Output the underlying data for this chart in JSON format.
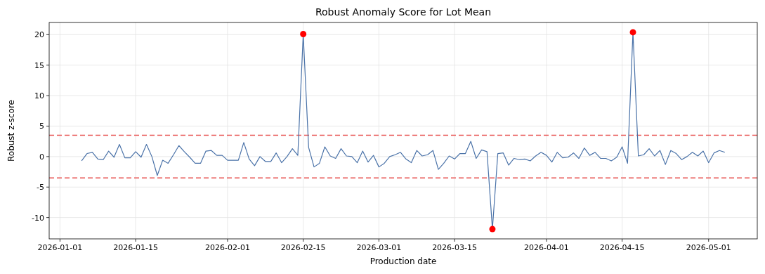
{
  "chart_data": {
    "type": "line",
    "title": "Robust Anomaly Score for Lot Mean",
    "xlabel": "Production date",
    "ylabel": "Robust z-score",
    "x": [
      "2026-01-05",
      "2026-01-06",
      "2026-01-07",
      "2026-01-08",
      "2026-01-09",
      "2026-01-10",
      "2026-01-11",
      "2026-01-12",
      "2026-01-13",
      "2026-01-14",
      "2026-01-15",
      "2026-01-16",
      "2026-01-17",
      "2026-01-18",
      "2026-01-19",
      "2026-01-20",
      "2026-01-21",
      "2026-01-22",
      "2026-01-23",
      "2026-01-24",
      "2026-01-25",
      "2026-01-26",
      "2026-01-27",
      "2026-01-28",
      "2026-01-29",
      "2026-01-30",
      "2026-01-31",
      "2026-02-01",
      "2026-02-02",
      "2026-02-03",
      "2026-02-04",
      "2026-02-05",
      "2026-02-06",
      "2026-02-07",
      "2026-02-08",
      "2026-02-09",
      "2026-02-10",
      "2026-02-11",
      "2026-02-12",
      "2026-02-13",
      "2026-02-14",
      "2026-02-15",
      "2026-02-16",
      "2026-02-17",
      "2026-02-18",
      "2026-02-19",
      "2026-02-20",
      "2026-02-21",
      "2026-02-22",
      "2026-02-23",
      "2026-02-24",
      "2026-02-25",
      "2026-02-26",
      "2026-02-27",
      "2026-02-28",
      "2026-03-01",
      "2026-03-02",
      "2026-03-03",
      "2026-03-04",
      "2026-03-05",
      "2026-03-06",
      "2026-03-07",
      "2026-03-08",
      "2026-03-09",
      "2026-03-10",
      "2026-03-11",
      "2026-03-12",
      "2026-03-13",
      "2026-03-14",
      "2026-03-15",
      "2026-03-16",
      "2026-03-17",
      "2026-03-18",
      "2026-03-19",
      "2026-03-20",
      "2026-03-21",
      "2026-03-22",
      "2026-03-23",
      "2026-03-24",
      "2026-03-25",
      "2026-03-26",
      "2026-03-27",
      "2026-03-28",
      "2026-03-29",
      "2026-03-30",
      "2026-03-31",
      "2026-04-01",
      "2026-04-02",
      "2026-04-03",
      "2026-04-04",
      "2026-04-05",
      "2026-04-06",
      "2026-04-07",
      "2026-04-08",
      "2026-04-09",
      "2026-04-10",
      "2026-04-11",
      "2026-04-12",
      "2026-04-13",
      "2026-04-14",
      "2026-04-15",
      "2026-04-16",
      "2026-04-17",
      "2026-04-18",
      "2026-04-19",
      "2026-04-20",
      "2026-04-21",
      "2026-04-22",
      "2026-04-23",
      "2026-04-24",
      "2026-04-25",
      "2026-04-26",
      "2026-04-27",
      "2026-04-28",
      "2026-04-29",
      "2026-04-30",
      "2026-05-01",
      "2026-05-02",
      "2026-05-03",
      "2026-05-04"
    ],
    "series": [
      {
        "color": "#4a72a8",
        "marker": "none",
        "values": [
          -0.7,
          0.5,
          0.7,
          -0.4,
          -0.5,
          0.9,
          -0.1,
          2.0,
          -0.2,
          -0.2,
          0.8,
          -0.1,
          2.0,
          0.0,
          -3.1,
          -0.6,
          -1.1,
          0.3,
          1.8,
          0.8,
          -0.1,
          -1.1,
          -1.1,
          0.9,
          1.0,
          0.2,
          0.2,
          -0.6,
          -0.6,
          -0.6,
          2.3,
          -0.4,
          -1.5,
          0.0,
          -0.8,
          -0.8,
          0.6,
          -1.0,
          0.0,
          1.3,
          0.2,
          20.1,
          1.5,
          -1.7,
          -1.1,
          1.6,
          0.1,
          -0.3,
          1.3,
          0.1,
          0.0,
          -1.0,
          0.9,
          -0.9,
          0.2,
          -1.7,
          -1.1,
          0.0,
          0.3,
          0.7,
          -0.4,
          -1.0,
          1.0,
          0.1,
          0.3,
          1.0,
          -2.1,
          -1.1,
          0.1,
          -0.4,
          0.5,
          0.5,
          2.5,
          -0.3,
          1.1,
          0.8,
          -11.9,
          0.5,
          0.6,
          -1.4,
          -0.3,
          -0.5,
          -0.4,
          -0.7,
          0.1,
          0.7,
          0.2,
          -0.9,
          0.7,
          -0.2,
          -0.1,
          0.6,
          -0.3,
          1.4,
          0.2,
          0.7,
          -0.3,
          -0.3,
          -0.7,
          -0.1,
          1.6,
          -1.1,
          20.4,
          0.1,
          0.3,
          1.3,
          0.1,
          1.0,
          -1.3,
          1.0,
          0.5,
          -0.5,
          0.0,
          0.7,
          0.1,
          0.9,
          -1.0,
          0.6,
          1.0,
          0.7
        ]
      },
      {
        "type": "scatter",
        "marker": "circle",
        "color": "#ff0000",
        "x": [
          "2026-02-15",
          "2026-03-22",
          "2026-04-17"
        ],
        "values": [
          20.1,
          -11.9,
          20.4
        ]
      }
    ],
    "ref_lines": [
      {
        "axis": "y",
        "value": 3.5,
        "color": "#e8504f",
        "line_style": "dashed"
      },
      {
        "axis": "y",
        "value": -3.5,
        "color": "#e8504f",
        "line_style": "dashed"
      }
    ],
    "xlim": [
      "2025-12-30",
      "2026-05-10"
    ],
    "ylim": [
      -13.5,
      22
    ],
    "xticks": [
      "2026-01-01",
      "2026-01-15",
      "2026-02-01",
      "2026-02-15",
      "2026-03-01",
      "2026-03-15",
      "2026-04-01",
      "2026-04-15",
      "2026-05-01"
    ],
    "yticks": [
      -10,
      -5,
      0,
      5,
      10,
      15,
      20
    ],
    "grid": true
  }
}
